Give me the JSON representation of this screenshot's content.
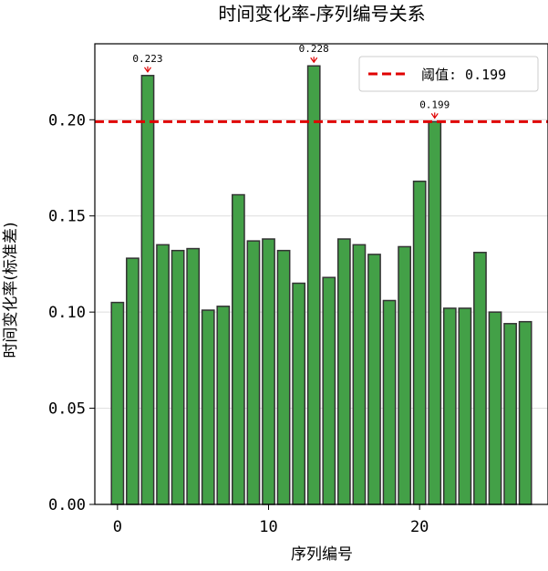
{
  "chart_data": {
    "type": "bar",
    "title": "时间变化率-序列编号关系",
    "xlabel": "序列编号",
    "ylabel": "时间变化率(标准差)",
    "x": [
      0,
      1,
      2,
      3,
      4,
      5,
      6,
      7,
      8,
      9,
      10,
      11,
      12,
      13,
      14,
      15,
      16,
      17,
      18,
      19,
      20,
      21,
      22,
      23,
      24,
      25,
      26,
      27
    ],
    "values": [
      0.105,
      0.128,
      0.223,
      0.135,
      0.132,
      0.133,
      0.101,
      0.103,
      0.161,
      0.137,
      0.138,
      0.132,
      0.115,
      0.228,
      0.118,
      0.138,
      0.135,
      0.13,
      0.106,
      0.134,
      0.168,
      0.199,
      0.102,
      0.102,
      0.131,
      0.1,
      0.094,
      0.095
    ],
    "xlim": [
      -1.5,
      28.5
    ],
    "ylim": [
      0,
      0.2395
    ],
    "xticks": [
      0,
      10,
      20
    ],
    "xtick_labels": [
      "0",
      "10",
      "20"
    ],
    "yticks": [
      0,
      0.05,
      0.1,
      0.15,
      0.2
    ],
    "ytick_labels": [
      "0.00",
      "0.05",
      "0.10",
      "0.15",
      "0.20"
    ],
    "grid": "horizontal",
    "threshold": {
      "value": 0.199,
      "label": "阈值: 0.199",
      "style": "dashed"
    },
    "annotations": [
      {
        "x": 2,
        "y": 0.223,
        "text": "0.223"
      },
      {
        "x": 13,
        "y": 0.228,
        "text": "0.228"
      },
      {
        "x": 21,
        "y": 0.199,
        "text": "0.199"
      }
    ],
    "legend_position": "top-right",
    "colors": {
      "bar": "#43a047",
      "bar_edge": "#333333",
      "threshold": "#e00000",
      "annotation_arrow": "#e00000"
    }
  }
}
